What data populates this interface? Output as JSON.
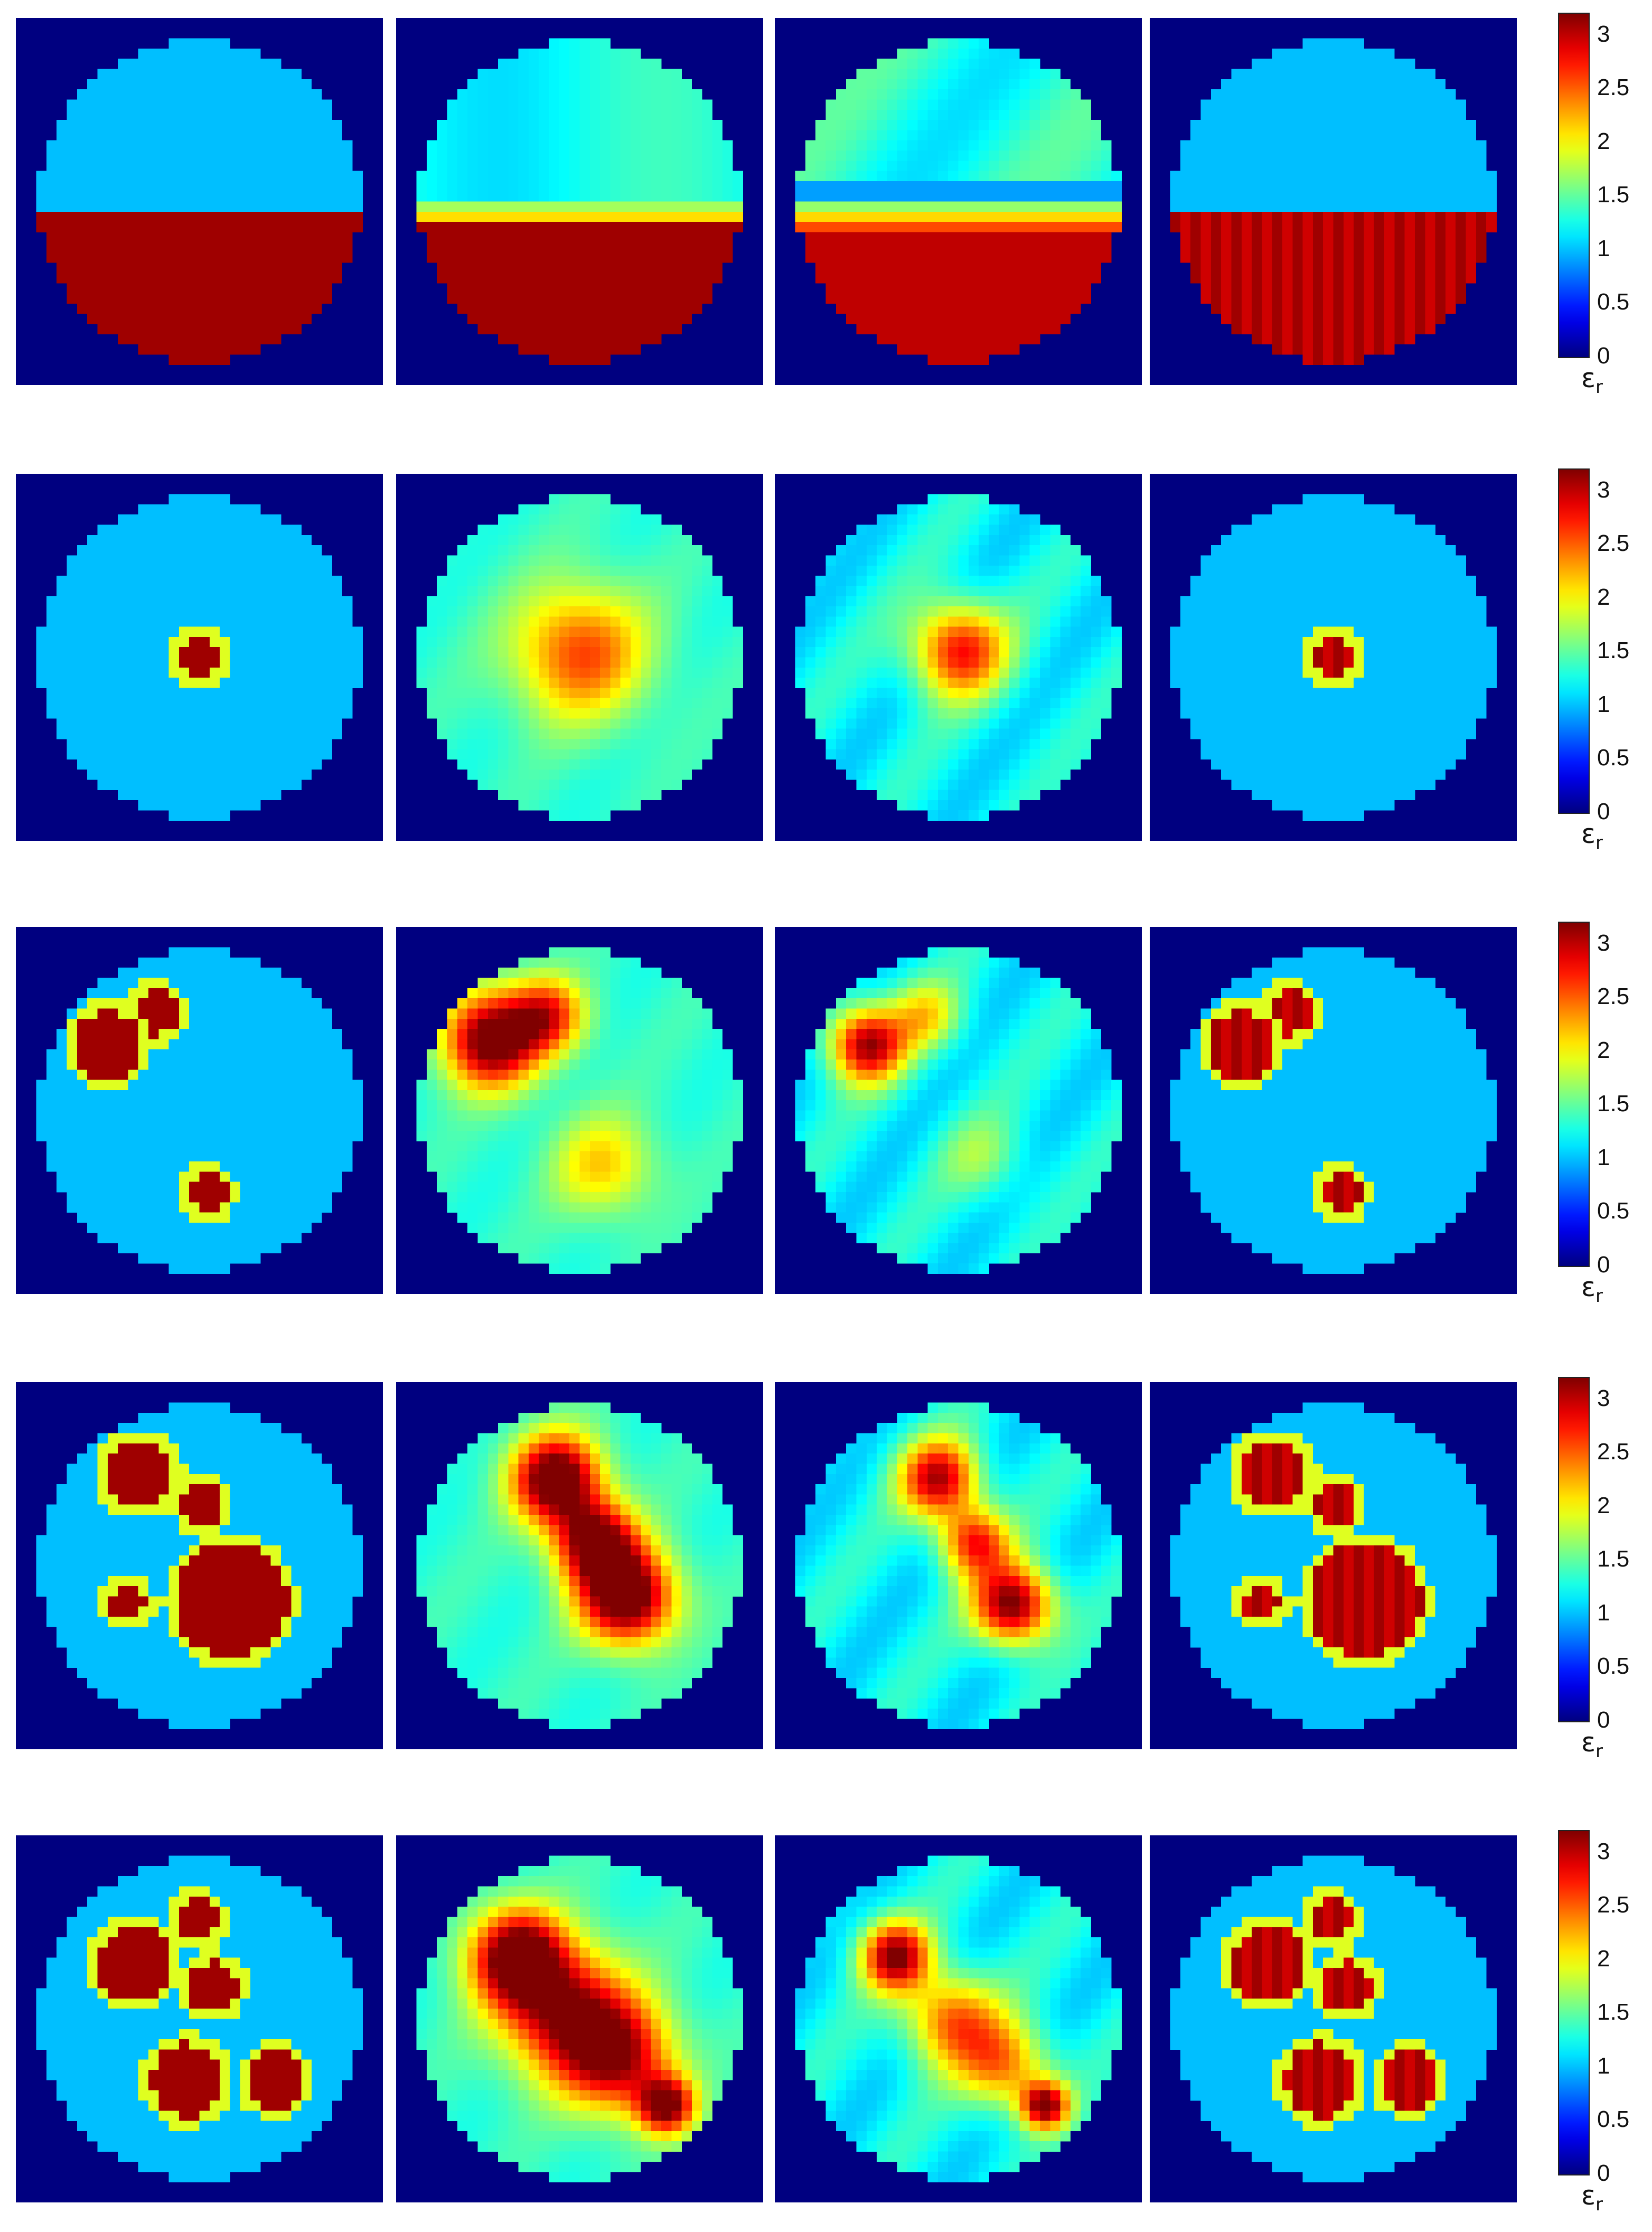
{
  "chart_data": {
    "type": "heatmap",
    "grid": {
      "rows": 5,
      "cols": 4
    },
    "colormap": "jet",
    "background_color": "#000080",
    "colorbar": {
      "range": [
        0,
        3.2
      ],
      "ticks": [
        0,
        0.5,
        1,
        1.5,
        2,
        2.5,
        3
      ],
      "tick_labels": [
        "0",
        "0.5",
        "1",
        "1.5",
        "2",
        "2.5",
        "3"
      ],
      "label": "ε",
      "label_sub": "r"
    },
    "domain_background_value": 1.0,
    "inclusion_value": 3.1,
    "rows": [
      {
        "model": "half",
        "inclusions": [],
        "split": {
          "boundary_y": 0.54,
          "upper_value": 1.0,
          "lower_value": 3.1
        },
        "recon_a": "half_smooth_a",
        "recon_b": "half_smooth_b"
      },
      {
        "model": "circles",
        "inclusions": [
          {
            "cx": 0.0,
            "cy": 0.0,
            "r": 0.12
          }
        ],
        "blobs_a": [
          {
            "cx": 0.0,
            "cy": -0.03,
            "r": 0.42,
            "amp": 1.25
          }
        ],
        "blobs_b": [
          {
            "cx": 0.0,
            "cy": -0.05,
            "r": 0.3,
            "amp": 1.6
          }
        ]
      },
      {
        "model": "circles",
        "inclusions": [
          {
            "cx": -0.58,
            "cy": -0.41,
            "r": 0.22
          },
          {
            "cx": -0.28,
            "cy": -0.62,
            "r": 0.14
          },
          {
            "cx": 0.06,
            "cy": 0.52,
            "r": 0.12
          }
        ],
        "blobs_a": [
          {
            "cx": -0.56,
            "cy": -0.45,
            "r": 0.3,
            "amp": 2.1
          },
          {
            "cx": -0.2,
            "cy": -0.6,
            "r": 0.24,
            "amp": 1.3
          },
          {
            "cx": 0.15,
            "cy": 0.35,
            "r": 0.32,
            "amp": 0.8
          }
        ],
        "blobs_b": [
          {
            "cx": -0.58,
            "cy": -0.42,
            "r": 0.24,
            "amp": 1.9
          },
          {
            "cx": -0.2,
            "cy": -0.6,
            "r": 0.22,
            "amp": 0.8
          },
          {
            "cx": 0.15,
            "cy": 0.3,
            "r": 0.26,
            "amp": 0.45
          }
        ]
      },
      {
        "model": "circles",
        "inclusions": [
          {
            "cx": -0.38,
            "cy": -0.58,
            "r": 0.22
          },
          {
            "cx": 0.02,
            "cy": -0.38,
            "r": 0.13
          },
          {
            "cx": -0.46,
            "cy": 0.24,
            "r": 0.11
          },
          {
            "cx": 0.2,
            "cy": 0.22,
            "r": 0.36
          }
        ],
        "blobs_a": [
          {
            "cx": -0.15,
            "cy": -0.55,
            "r": 0.28,
            "amp": 2.2
          },
          {
            "cx": 0.1,
            "cy": -0.15,
            "r": 0.26,
            "amp": 1.9
          },
          {
            "cx": 0.3,
            "cy": 0.2,
            "r": 0.3,
            "amp": 2.2
          }
        ],
        "blobs_b": [
          {
            "cx": -0.12,
            "cy": -0.55,
            "r": 0.25,
            "amp": 1.8
          },
          {
            "cx": 0.1,
            "cy": -0.15,
            "r": 0.22,
            "amp": 1.5
          },
          {
            "cx": 0.35,
            "cy": 0.25,
            "r": 0.25,
            "amp": 2.1
          }
        ]
      },
      {
        "model": "circles",
        "inclusions": [
          {
            "cx": -0.41,
            "cy": -0.35,
            "r": 0.24
          },
          {
            "cx": -0.02,
            "cy": -0.63,
            "r": 0.13
          },
          {
            "cx": 0.08,
            "cy": -0.2,
            "r": 0.16
          },
          {
            "cx": -0.08,
            "cy": 0.39,
            "r": 0.23
          },
          {
            "cx": 0.48,
            "cy": 0.39,
            "r": 0.18
          }
        ],
        "blobs_a": [
          {
            "cx": -0.4,
            "cy": -0.4,
            "r": 0.3,
            "amp": 2.0
          },
          {
            "cx": -0.1,
            "cy": -0.05,
            "r": 0.4,
            "amp": 1.7
          },
          {
            "cx": 0.25,
            "cy": 0.25,
            "r": 0.35,
            "amp": 1.6
          },
          {
            "cx": 0.55,
            "cy": 0.55,
            "r": 0.18,
            "amp": 1.8
          }
        ],
        "blobs_b": [
          {
            "cx": -0.4,
            "cy": -0.4,
            "r": 0.22,
            "amp": 1.9
          },
          {
            "cx": -0.05,
            "cy": 0.0,
            "r": 0.3,
            "amp": 1.3
          },
          {
            "cx": 0.3,
            "cy": 0.3,
            "r": 0.28,
            "amp": 1.2
          },
          {
            "cx": 0.55,
            "cy": 0.55,
            "r": 0.15,
            "amp": 1.9
          }
        ]
      }
    ]
  }
}
